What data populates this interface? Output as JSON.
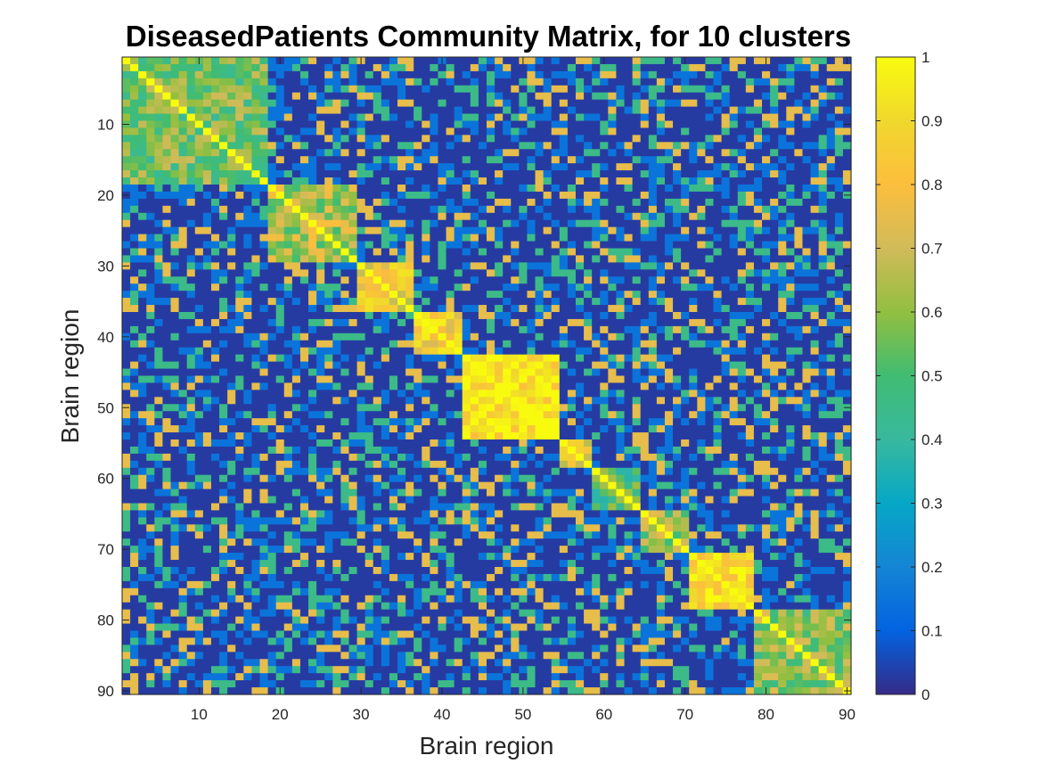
{
  "chart_data": {
    "type": "heatmap",
    "title": "DiseasedPatients Community Matrix, for 10 clusters",
    "xlabel": "Brain region",
    "ylabel": "Brain region",
    "n": 90,
    "xlim": [
      0.5,
      90.5
    ],
    "ylim": [
      0.5,
      90.5
    ],
    "x_ticks": [
      10,
      20,
      30,
      40,
      50,
      60,
      70,
      80,
      90
    ],
    "y_ticks": [
      10,
      20,
      30,
      40,
      50,
      60,
      70,
      80,
      90
    ],
    "colorbar": {
      "colormap": "parula",
      "clim": [
        0,
        1
      ],
      "ticks": [
        0,
        0.1,
        0.2,
        0.3,
        0.4,
        0.5,
        0.6,
        0.7,
        0.8,
        0.9,
        1
      ],
      "tick_labels": [
        "0",
        "0.1",
        "0.2",
        "0.3",
        "0.4",
        "0.5",
        "0.6",
        "0.7",
        "0.8",
        "0.9",
        "1"
      ]
    },
    "clusters": [
      {
        "range": [
          1,
          18
        ],
        "within": 0.55
      },
      {
        "range": [
          19,
          29
        ],
        "within": 0.65
      },
      {
        "range": [
          30,
          36
        ],
        "within": 0.8
      },
      {
        "range": [
          37,
          42
        ],
        "within": 0.85
      },
      {
        "range": [
          43,
          54
        ],
        "within": 0.95
      },
      {
        "range": [
          55,
          58
        ],
        "within": 0.8
      },
      {
        "range": [
          59,
          64
        ],
        "within": 0.5
      },
      {
        "range": [
          65,
          70
        ],
        "within": 0.6
      },
      {
        "range": [
          71,
          78
        ],
        "within": 0.9
      },
      {
        "range": [
          79,
          90
        ],
        "within": 0.6
      }
    ],
    "diagonal_value": 1
  }
}
